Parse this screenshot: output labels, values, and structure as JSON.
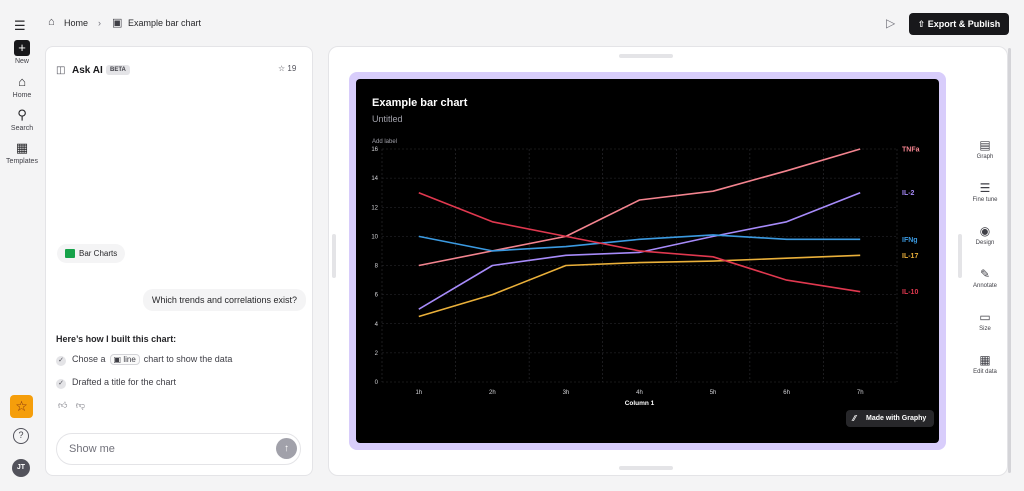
{
  "rail": {
    "new_label": "New",
    "home_label": "Home",
    "search_label": "Search",
    "templates_label": "Templates",
    "avatar_initials": "JT"
  },
  "breadcrumb": {
    "home": "Home",
    "current": "Example bar chart"
  },
  "toolbar": {
    "export_label": "Export & Publish"
  },
  "chat": {
    "title": "Ask AI",
    "badge": "BETA",
    "favorites_count": "19",
    "chip_label": "Bar Charts",
    "user_message": "Which trends and correlations exist?",
    "built_heading": "Here’s how I built this chart:",
    "step1_prefix": "Chose a",
    "step1_pill": "line",
    "step1_suffix": "chart to show the data",
    "step2": "Drafted a title for the chart",
    "input_placeholder": "Show me"
  },
  "tools": {
    "graph": "Graph",
    "fine_tune": "Fine tune",
    "design": "Design",
    "annotate": "Annotate",
    "size": "Size",
    "edit_data": "Edit data"
  },
  "watermark": "Made with Graphy",
  "chart_data": {
    "type": "line",
    "title": "Example bar chart",
    "subtitle": "Untitled",
    "ylabel": "Add label",
    "xlabel": "Column 1",
    "categories": [
      "1h",
      "2h",
      "3h",
      "4h",
      "5h",
      "6h",
      "7h"
    ],
    "ylim": [
      0,
      16
    ],
    "yticks": [
      0,
      2,
      4,
      6,
      8,
      10,
      12,
      14,
      16
    ],
    "grid": true,
    "legend": "inline-right",
    "series": [
      {
        "name": "TNFa",
        "color": "#f4848f",
        "values": [
          8,
          9,
          10,
          12.5,
          13.1,
          14.5,
          16
        ]
      },
      {
        "name": "IL-2",
        "color": "#a78bfa",
        "values": [
          5,
          8,
          8.7,
          8.9,
          10,
          11,
          13
        ]
      },
      {
        "name": "IFNg",
        "color": "#3b9ae1",
        "values": [
          10,
          9,
          9.3,
          9.8,
          10.1,
          9.8,
          9.8
        ]
      },
      {
        "name": "IL-17",
        "color": "#eab03a",
        "values": [
          4.5,
          6,
          8,
          8.2,
          8.3,
          8.5,
          8.7
        ]
      },
      {
        "name": "IL-10",
        "color": "#e0384f",
        "values": [
          13,
          11,
          10,
          9,
          8.6,
          7,
          6.2
        ]
      }
    ]
  }
}
